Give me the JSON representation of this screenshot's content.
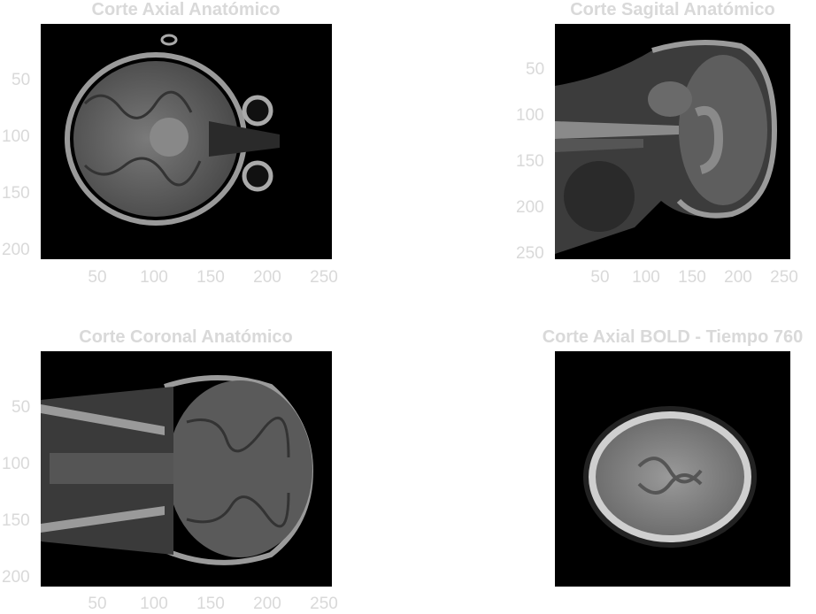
{
  "panels": [
    {
      "title": "Corte Axial Anatómico",
      "x_ticks": [
        "50",
        "100",
        "150",
        "200",
        "250"
      ],
      "y_ticks": [
        "50",
        "100",
        "150",
        "200"
      ]
    },
    {
      "title": "Corte Sagital Anatómico",
      "x_ticks": [
        "50",
        "100",
        "150",
        "200",
        "250"
      ],
      "y_ticks": [
        "50",
        "100",
        "150",
        "200",
        "250"
      ]
    },
    {
      "title": "Corte Coronal Anatómico",
      "x_ticks": [
        "50",
        "100",
        "150",
        "200",
        "250"
      ],
      "y_ticks": [
        "50",
        "100",
        "150",
        "200"
      ]
    },
    {
      "title": "Corte Axial BOLD - Tiempo 760",
      "x_ticks": [],
      "y_ticks": []
    }
  ],
  "colors": {
    "text": "#d9d9d9",
    "image_bg": "#000000",
    "page_bg": "#ffffff"
  }
}
